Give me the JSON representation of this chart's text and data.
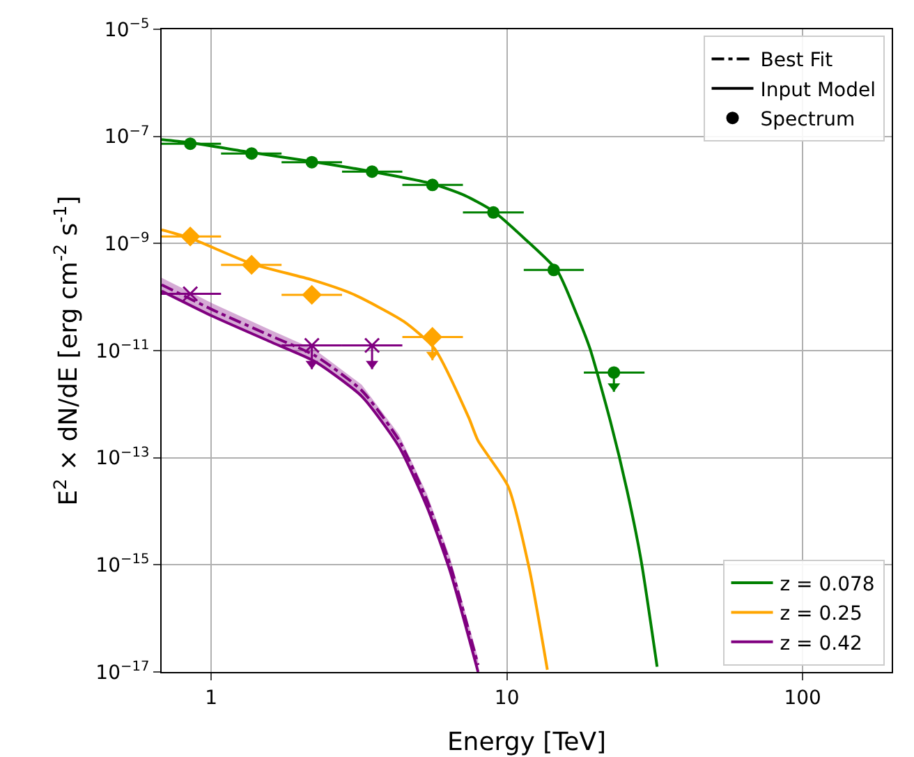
{
  "chart_data": {
    "type": "line",
    "xlabel": "Energy [TeV]",
    "ylabel": "E$^{2}$ × dN/dE [erg cm$^{-2}$ s$^{-1}$]",
    "log": "xy",
    "grid": true,
    "legend": "right",
    "xlim": [
      0.68,
      200
    ],
    "xticks": [
      1,
      10,
      100
    ],
    "ylim": [
      1e-17,
      1e-05
    ],
    "yticks": [
      {
        "value": 1e-17,
        "label": "10$^{−17}$"
      },
      {
        "value": 1e-15,
        "label": "10$^{−15}$"
      },
      {
        "value": 1e-13,
        "label": "10$^{−13}$"
      },
      {
        "value": 1e-11,
        "label": "10$^{−11}$"
      },
      {
        "value": 1e-09,
        "label": "10$^{−9}$"
      },
      {
        "value": 1e-07,
        "label": "10$^{−7}$"
      },
      {
        "value": 1e-05,
        "label": "10$^{−5}$"
      }
    ],
    "series": [
      {
        "name": "z = 0.078",
        "color": "#008000",
        "line_style": "solid",
        "x": [
          0.68,
          0.85,
          1.37,
          2.19,
          3.5,
          5.6,
          7.2,
          9.0,
          11.5,
          14.8,
          17.1,
          19.1,
          22.4,
          25.5,
          28.4,
          32.2
        ],
        "values": [
          8.7e-08,
          7.6e-08,
          5e-08,
          3.4e-08,
          2.2e-08,
          1.3e-08,
          7.9e-09,
          4e-09,
          1.22e-09,
          3.1e-10,
          5.2e-11,
          1.08e-11,
          4.7e-13,
          2.4e-14,
          1.25e-15,
          1.25e-17
        ]
      },
      {
        "color": "#008000",
        "type": "scatter",
        "marker": "circle",
        "x": [
          0.85,
          1.37,
          2.19,
          3.5,
          5.6,
          9.0,
          14.4,
          23.0
        ],
        "values": [
          7.3e-08,
          4.8e-08,
          3.3e-08,
          2.2e-08,
          1.24e-08,
          3.8e-09,
          3.2e-10,
          3.9e-12
        ],
        "xerrors": [
          [
            0.68,
            1.08
          ],
          [
            1.08,
            1.73
          ],
          [
            1.73,
            2.77
          ],
          [
            2.77,
            4.43
          ],
          [
            4.43,
            7.1
          ],
          [
            7.1,
            11.4
          ],
          [
            11.4,
            18.2
          ],
          [
            18.2,
            29.2
          ]
        ],
        "errors": [
          null,
          null,
          null,
          null,
          null,
          null,
          null,
          [
            1.7e-12,
            3.9e-12
          ]
        ]
      },
      {
        "name": "z = 0.25",
        "color": "#ffa500",
        "line_style": "solid",
        "x": [
          0.68,
          0.85,
          1.37,
          2.19,
          3.0,
          4.48,
          5.7,
          7.43,
          7.98,
          10.1,
          11.9,
          13.7
        ],
        "values": [
          1.8e-09,
          1.26e-09,
          4.2e-10,
          2.1e-10,
          1.15e-10,
          3.5e-11,
          1.08e-11,
          5.6e-13,
          2.1e-13,
          2.9e-14,
          8.5e-16,
          1.1e-17
        ]
      },
      {
        "color": "#ffa500",
        "type": "scatter",
        "marker": "diamond",
        "x": [
          0.85,
          1.37,
          2.19,
          5.6
        ],
        "values": [
          1.35e-09,
          4e-10,
          1.1e-10,
          1.8e-11
        ],
        "xerrors": [
          [
            0.68,
            1.08
          ],
          [
            1.08,
            1.73
          ],
          [
            1.73,
            2.77
          ],
          [
            4.43,
            7.1
          ]
        ],
        "errors": [
          null,
          null,
          null,
          [
            6.6e-12,
            1.8e-11
          ]
        ]
      },
      {
        "name": "z = 0.42",
        "color": "#800080",
        "line_style": "solid",
        "x": [
          0.68,
          1.01,
          1.57,
          2.25,
          3.23,
          4.32,
          5.37,
          6.43,
          7.99
        ],
        "values": [
          1.3e-10,
          4.4e-11,
          1.5e-11,
          6.2e-12,
          1.4e-12,
          1.6e-13,
          1.2e-14,
          7.5e-16,
          1e-17
        ]
      },
      {
        "color": "#800080",
        "type": "line",
        "line_style": "dashdot",
        "x": [
          0.68,
          1.01,
          1.57,
          2.25,
          3.23,
          4.32,
          5.37,
          6.43,
          7.99
        ],
        "values": [
          1.7e-10,
          5.8e-11,
          1.95e-11,
          8e-12,
          1.8e-12,
          2.1e-13,
          1.6e-14,
          1e-15,
          1.35e-17
        ],
        "lower": [
          1.25e-10,
          4.3e-11,
          1.5e-11,
          6.1e-12,
          1.38e-12,
          1.6e-13,
          1.2e-14,
          7.5e-16,
          1e-17
        ],
        "upper": [
          2.3e-10,
          7.6e-11,
          2.5e-11,
          1.03e-11,
          2.3e-12,
          2.7e-13,
          2.1e-14,
          1.35e-15,
          1.8e-17
        ]
      },
      {
        "color": "#800080",
        "type": "scatter",
        "marker": "cross",
        "x": [
          0.85,
          2.19,
          3.5
        ],
        "values": [
          1.15e-10,
          1.25e-11,
          1.25e-11
        ],
        "xerrors": [
          [
            0.68,
            1.08
          ],
          [
            1.73,
            2.77
          ],
          [
            2.77,
            4.43
          ]
        ],
        "errors": [
          null,
          [
            4.5e-12,
            1.25e-11
          ],
          [
            4.5e-12,
            1.25e-11
          ]
        ]
      },
      {
        "name": "Best Fit",
        "color": "#000000",
        "type": "line",
        "line_style": "dashdot",
        "x": [
          null
        ],
        "values": [
          null
        ]
      },
      {
        "name": "Input Model",
        "color": "#000000",
        "type": "line",
        "line_style": "solid",
        "x": [
          null
        ],
        "values": [
          null
        ]
      },
      {
        "name": "Spectrum",
        "color": "#000000",
        "type": "scatter",
        "marker": "circle",
        "x": [
          null
        ],
        "values": [
          null
        ]
      }
    ]
  }
}
